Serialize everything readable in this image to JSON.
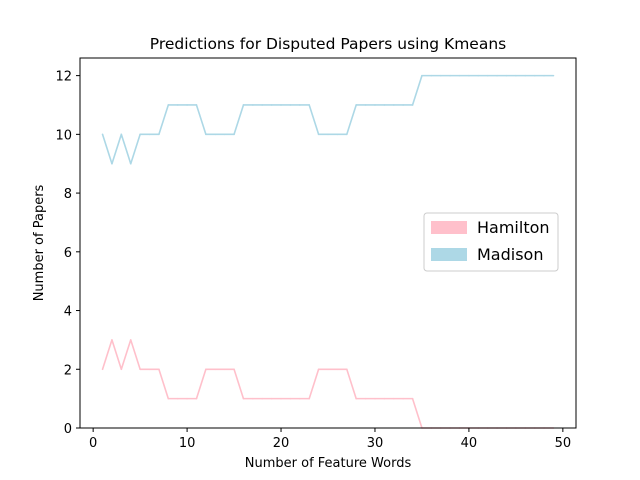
{
  "chart_data": {
    "type": "line",
    "title": "Predictions for Disputed Papers using Kmeans",
    "xlabel": "Number of Feature Words",
    "ylabel": "Number of Papers",
    "xlim": [
      -1.4,
      51.4
    ],
    "ylim": [
      0,
      12.6
    ],
    "xticks": [
      0,
      10,
      20,
      30,
      40,
      50
    ],
    "yticks": [
      0,
      2,
      4,
      6,
      8,
      10,
      12
    ],
    "grid": false,
    "legend_position": "center-right",
    "x": [
      1,
      2,
      3,
      4,
      5,
      6,
      7,
      8,
      9,
      10,
      11,
      12,
      13,
      14,
      15,
      16,
      17,
      18,
      19,
      20,
      21,
      22,
      23,
      24,
      25,
      26,
      27,
      28,
      29,
      30,
      31,
      32,
      33,
      34,
      35,
      36,
      37,
      38,
      39,
      40,
      41,
      42,
      43,
      44,
      45,
      46,
      47,
      48,
      49
    ],
    "series": [
      {
        "name": "Hamilton",
        "color": "#ffc0cb",
        "values": [
          2,
          3,
          2,
          3,
          2,
          2,
          2,
          1,
          1,
          1,
          1,
          2,
          2,
          2,
          2,
          1,
          1,
          1,
          1,
          1,
          1,
          1,
          1,
          2,
          2,
          2,
          2,
          1,
          1,
          1,
          1,
          1,
          1,
          1,
          0,
          0,
          0,
          0,
          0,
          0,
          0,
          0,
          0,
          0,
          0,
          0,
          0,
          0,
          0
        ]
      },
      {
        "name": "Madison",
        "color": "#add8e6",
        "values": [
          10,
          9,
          10,
          9,
          10,
          10,
          10,
          11,
          11,
          11,
          11,
          10,
          10,
          10,
          10,
          11,
          11,
          11,
          11,
          11,
          11,
          11,
          11,
          10,
          10,
          10,
          10,
          11,
          11,
          11,
          11,
          11,
          11,
          11,
          12,
          12,
          12,
          12,
          12,
          12,
          12,
          12,
          12,
          12,
          12,
          12,
          12,
          12,
          12
        ]
      }
    ]
  }
}
